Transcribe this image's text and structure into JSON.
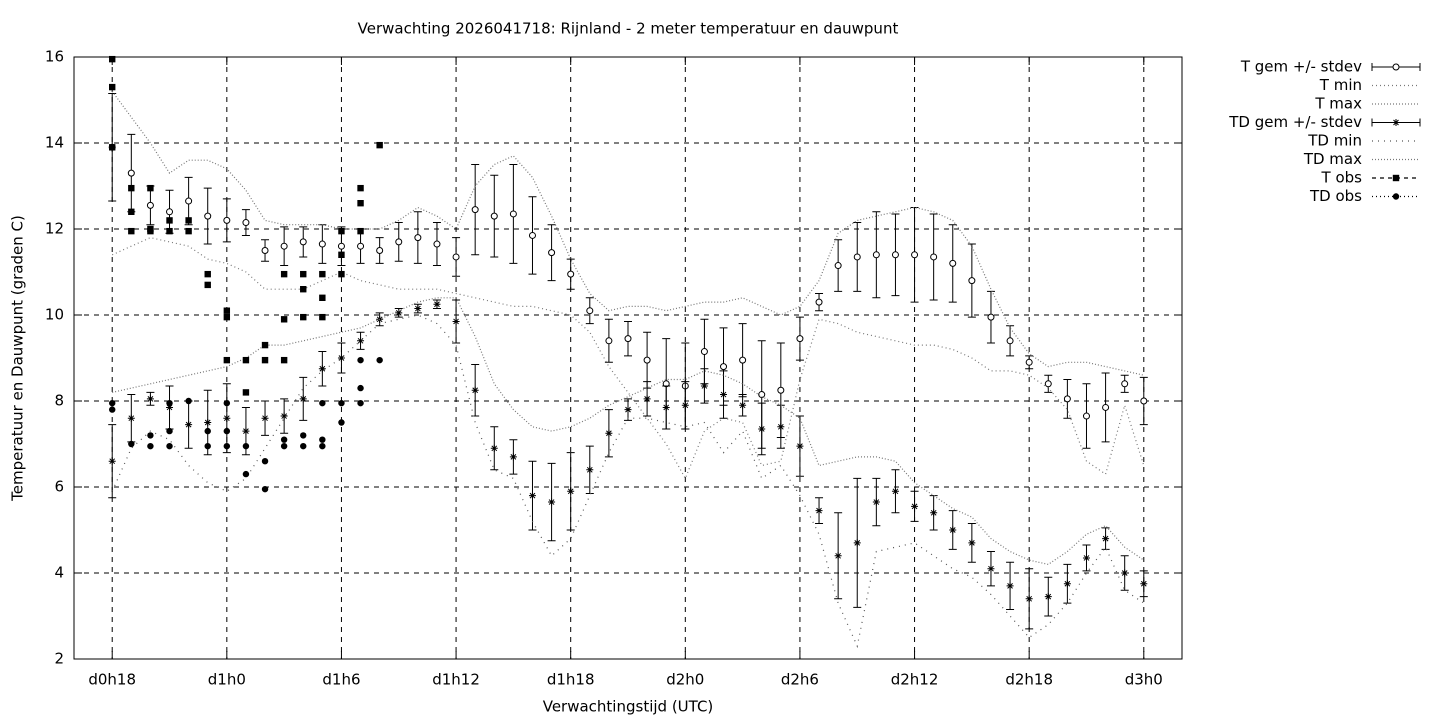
{
  "chart_data": {
    "type": "errorbar",
    "title": "Verwachting 2026041718: Rijnland - 2 meter temperatuur en dauwpunt",
    "xlabel": "Verwachtingstijd (UTC)",
    "ylabel": "Temperatuur en Dauwpunt (graden C)",
    "xlim": [
      -2,
      56
    ],
    "xticks": [
      {
        "value": 0,
        "label": "d0h18"
      },
      {
        "value": 6,
        "label": "d1h0"
      },
      {
        "value": 12,
        "label": "d1h6"
      },
      {
        "value": 18,
        "label": "d1h12"
      },
      {
        "value": 24,
        "label": "d1h18"
      },
      {
        "value": 30,
        "label": "d2h0"
      },
      {
        "value": 36,
        "label": "d2h6"
      },
      {
        "value": 42,
        "label": "d2h12"
      },
      {
        "value": 48,
        "label": "d2h18"
      },
      {
        "value": 54,
        "label": "d3h0"
      }
    ],
    "ylim": [
      2,
      16
    ],
    "yticks": [
      2,
      4,
      6,
      8,
      10,
      12,
      14,
      16
    ],
    "grid": true,
    "legend": "outside-top-right",
    "x": [
      0,
      1,
      2,
      3,
      4,
      5,
      6,
      7,
      8,
      9,
      10,
      11,
      12,
      13,
      14,
      15,
      16,
      17,
      18,
      19,
      20,
      21,
      22,
      23,
      24,
      25,
      26,
      27,
      28,
      29,
      30,
      31,
      32,
      33,
      34,
      35,
      36,
      37,
      38,
      39,
      40,
      41,
      42,
      43,
      44,
      45,
      46,
      47,
      48,
      49,
      50,
      51,
      52,
      53,
      54
    ],
    "series": [
      {
        "name": "T gem +/- stdev",
        "style": "errorbars",
        "marker": "circle",
        "color": "#000000",
        "values": [
          13.9,
          13.3,
          12.55,
          12.4,
          12.65,
          12.3,
          12.2,
          12.15,
          11.5,
          11.6,
          11.7,
          11.65,
          11.6,
          11.6,
          11.5,
          11.7,
          11.8,
          11.65,
          11.35,
          12.45,
          12.3,
          12.35,
          11.85,
          11.45,
          10.95,
          10.1,
          9.4,
          9.45,
          8.95,
          8.4,
          8.35,
          9.15,
          8.8,
          8.95,
          8.15,
          8.25,
          9.45,
          10.3,
          11.15,
          11.35,
          11.4,
          11.4,
          11.4,
          11.35,
          11.2,
          10.8,
          9.95,
          9.4,
          8.9,
          8.4,
          8.05,
          7.65,
          7.85,
          8.4,
          8.0
        ],
        "errors": [
          1.25,
          0.9,
          0.45,
          0.5,
          0.55,
          0.65,
          0.5,
          0.3,
          0.25,
          0.45,
          0.35,
          0.45,
          0.45,
          0.4,
          0.3,
          0.45,
          0.6,
          0.5,
          0.45,
          1.05,
          0.95,
          1.15,
          0.9,
          0.65,
          0.35,
          0.3,
          0.5,
          0.4,
          0.65,
          1.05,
          1.0,
          0.75,
          0.9,
          0.85,
          1.25,
          1.1,
          0.5,
          0.2,
          0.6,
          0.8,
          1.0,
          0.95,
          1.1,
          1.0,
          0.9,
          0.85,
          0.6,
          0.35,
          0.15,
          0.2,
          0.45,
          0.75,
          0.8,
          0.2,
          0.55
        ]
      },
      {
        "name": "T min",
        "style": "line",
        "dash": "1 3",
        "color": "#777777",
        "values": [
          11.4,
          11.6,
          11.8,
          11.7,
          11.6,
          11.3,
          11.2,
          11.0,
          10.6,
          10.6,
          10.6,
          10.8,
          11.0,
          10.8,
          10.7,
          10.6,
          10.6,
          10.6,
          10.5,
          10.4,
          10.3,
          10.2,
          10.2,
          10.1,
          10.0,
          9.6,
          8.8,
          8.2,
          7.6,
          7.0,
          6.2,
          7.3,
          7.6,
          7.5,
          6.5,
          6.6,
          8.5,
          9.9,
          9.8,
          9.6,
          9.5,
          9.4,
          9.3,
          9.3,
          9.2,
          9.0,
          8.7,
          8.7,
          8.6,
          8.3,
          7.8,
          6.6,
          6.3,
          7.9,
          6.5
        ]
      },
      {
        "name": "T max",
        "style": "line",
        "dash": "1 2",
        "color": "#777777",
        "values": [
          15.2,
          14.6,
          14.0,
          13.3,
          13.6,
          13.6,
          13.4,
          12.9,
          12.2,
          12.1,
          12.1,
          12.1,
          12.0,
          12.0,
          12.0,
          12.2,
          12.5,
          12.3,
          12.0,
          13.0,
          13.5,
          13.7,
          13.2,
          12.3,
          11.3,
          10.5,
          10.1,
          10.2,
          10.2,
          10.1,
          10.2,
          10.3,
          10.3,
          10.4,
          10.2,
          10.0,
          10.2,
          10.8,
          11.9,
          12.2,
          12.3,
          12.4,
          12.5,
          12.4,
          12.2,
          11.6,
          10.6,
          9.7,
          9.1,
          8.8,
          8.9,
          8.9,
          8.8,
          8.7,
          8.6
        ]
      },
      {
        "name": "TD gem +/- stdev",
        "style": "errorbars",
        "marker": "star",
        "color": "#000000",
        "values": [
          6.6,
          7.6,
          8.05,
          7.85,
          7.45,
          7.5,
          7.6,
          7.3,
          7.6,
          7.65,
          8.05,
          8.75,
          9.0,
          9.4,
          9.9,
          10.05,
          10.15,
          10.25,
          9.85,
          8.25,
          6.9,
          6.7,
          5.8,
          5.65,
          5.9,
          6.4,
          7.25,
          7.8,
          8.05,
          7.85,
          7.9,
          8.35,
          8.15,
          7.9,
          7.35,
          7.4,
          6.95,
          5.45,
          4.4,
          4.7,
          5.65,
          5.9,
          5.55,
          5.4,
          5.0,
          4.7,
          4.1,
          3.7,
          3.4,
          3.45,
          3.75,
          4.35,
          4.8,
          4.0,
          3.75
        ],
        "errors": [
          0.85,
          0.55,
          0.15,
          0.5,
          0.55,
          0.75,
          0.8,
          0.55,
          0.4,
          0.4,
          0.5,
          0.4,
          0.35,
          0.2,
          0.15,
          0.1,
          0.1,
          0.1,
          0.5,
          0.6,
          0.5,
          0.4,
          0.8,
          0.9,
          0.9,
          0.55,
          0.55,
          0.25,
          0.4,
          0.5,
          0.55,
          0.4,
          0.55,
          0.25,
          0.6,
          0.5,
          0.7,
          0.3,
          1.0,
          1.5,
          0.55,
          0.5,
          0.35,
          0.4,
          0.45,
          0.45,
          0.4,
          0.55,
          0.7,
          0.45,
          0.45,
          0.3,
          0.25,
          0.4,
          0.3
        ]
      },
      {
        "name": "TD min",
        "style": "line",
        "dash": "1 5",
        "color": "#555555",
        "values": [
          5.9,
          6.9,
          7.3,
          7.1,
          6.5,
          6.1,
          5.9,
          6.2,
          6.9,
          7.6,
          8.3,
          8.7,
          9.0,
          9.4,
          9.8,
          9.9,
          10.0,
          9.8,
          9.3,
          7.5,
          6.4,
          6.2,
          5.2,
          4.4,
          4.8,
          5.8,
          6.8,
          7.6,
          7.6,
          7.5,
          7.4,
          7.5,
          6.8,
          7.3,
          6.2,
          6.5,
          5.8,
          4.9,
          3.3,
          2.3,
          4.5,
          4.6,
          4.7,
          4.4,
          4.1,
          3.9,
          3.5,
          3.0,
          2.5,
          2.8,
          3.3,
          4.0,
          4.6,
          3.6,
          3.3
        ]
      },
      {
        "name": "TD max",
        "style": "line",
        "dash": "1 2",
        "color": "#777777",
        "values": [
          8.2,
          8.3,
          8.4,
          8.5,
          8.6,
          8.7,
          8.8,
          9.0,
          9.3,
          9.3,
          9.4,
          9.5,
          9.6,
          9.7,
          9.9,
          10.1,
          10.3,
          10.4,
          10.4,
          9.5,
          8.4,
          7.8,
          7.4,
          7.3,
          7.4,
          7.6,
          7.9,
          8.1,
          8.3,
          8.5,
          8.5,
          8.7,
          8.6,
          8.4,
          8.1,
          7.9,
          7.6,
          6.5,
          6.6,
          6.7,
          6.7,
          6.6,
          6.1,
          5.8,
          5.5,
          5.3,
          4.8,
          4.5,
          4.3,
          4.2,
          4.5,
          4.9,
          5.1,
          4.6,
          4.3
        ]
      },
      {
        "name": "T obs",
        "style": "points",
        "marker": "square",
        "dash": "4 4",
        "color": "#000000",
        "x": [
          0,
          0,
          0,
          1,
          1,
          1,
          2,
          2,
          2,
          3,
          3,
          4,
          4,
          5,
          5,
          6,
          6,
          6,
          7,
          7,
          8,
          8,
          9,
          9,
          9,
          10,
          10,
          10,
          11,
          11,
          11,
          12,
          12,
          12,
          13,
          13,
          13,
          14
        ],
        "values": [
          15.95,
          15.3,
          13.9,
          12.95,
          12.4,
          11.95,
          12.95,
          12.0,
          11.95,
          12.2,
          11.95,
          12.2,
          11.95,
          10.95,
          10.7,
          10.1,
          9.95,
          8.95,
          8.95,
          8.2,
          9.3,
          8.95,
          10.95,
          9.9,
          8.95,
          10.95,
          10.6,
          9.95,
          10.95,
          10.4,
          9.95,
          11.95,
          11.4,
          10.95,
          12.95,
          12.6,
          11.95,
          13.95
        ]
      },
      {
        "name": "TD obs",
        "style": "points",
        "marker": "dot",
        "dash": "1 3",
        "color": "#000000",
        "x": [
          0,
          0,
          1,
          2,
          2,
          3,
          3,
          3,
          4,
          5,
          5,
          6,
          6,
          6,
          7,
          7,
          8,
          8,
          9,
          9,
          10,
          10,
          11,
          11,
          11,
          12,
          12,
          13,
          13,
          13,
          14
        ],
        "values": [
          7.95,
          7.8,
          7.0,
          7.2,
          6.95,
          7.95,
          7.3,
          6.95,
          8.0,
          7.3,
          6.95,
          7.95,
          7.3,
          6.95,
          6.95,
          6.3,
          6.6,
          5.95,
          7.1,
          6.95,
          7.2,
          6.95,
          7.95,
          7.1,
          6.95,
          7.95,
          7.5,
          8.95,
          8.3,
          7.95,
          8.95
        ]
      }
    ]
  }
}
